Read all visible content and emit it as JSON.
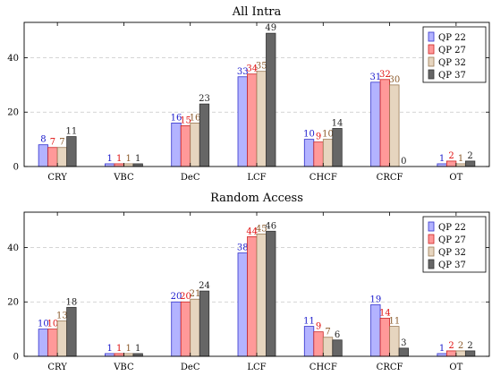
{
  "chart_data": [
    {
      "type": "bar",
      "title": "All Intra",
      "categories": [
        "CRY",
        "VBC",
        "DeC",
        "LCF",
        "CHCF",
        "CRCF",
        "OT"
      ],
      "ylim": [
        0,
        53
      ],
      "yticks": [
        0,
        20,
        40
      ],
      "grid": true,
      "legend": "top-right",
      "series": [
        {
          "name": "QP 22",
          "values": [
            8,
            1,
            16,
            33,
            10,
            31,
            1
          ]
        },
        {
          "name": "QP 27",
          "values": [
            7,
            1,
            15,
            34,
            9,
            32,
            2
          ]
        },
        {
          "name": "QP 32",
          "values": [
            7,
            1,
            16,
            35,
            10,
            30,
            1
          ]
        },
        {
          "name": "QP 37",
          "values": [
            11,
            1,
            23,
            49,
            14,
            0,
            2
          ]
        }
      ]
    },
    {
      "type": "bar",
      "title": "Random Access",
      "categories": [
        "CRY",
        "VBC",
        "DeC",
        "LCF",
        "CHCF",
        "CRCF",
        "OT"
      ],
      "ylim": [
        0,
        53
      ],
      "yticks": [
        0,
        20,
        40
      ],
      "grid": true,
      "legend": "top-right",
      "series": [
        {
          "name": "QP 22",
          "values": [
            10,
            1,
            20,
            38,
            11,
            19,
            1
          ]
        },
        {
          "name": "QP 27",
          "values": [
            10,
            1,
            20,
            44,
            9,
            14,
            2
          ]
        },
        {
          "name": "QP 32",
          "values": [
            13,
            1,
            21,
            45,
            7,
            11,
            2
          ]
        },
        {
          "name": "QP 37",
          "values": [
            18,
            1,
            24,
            46,
            6,
            3,
            2
          ]
        }
      ]
    }
  ],
  "colors": {
    "fills": [
      "#b3b3ff",
      "#ff9999",
      "#e6d5bf",
      "#666666"
    ],
    "strokes": [
      "#3333cc",
      "#cc2222",
      "#9a7a55",
      "#333333"
    ],
    "labels": [
      "#1a1acc",
      "#e01010",
      "#8b5a2b",
      "#222222"
    ]
  }
}
